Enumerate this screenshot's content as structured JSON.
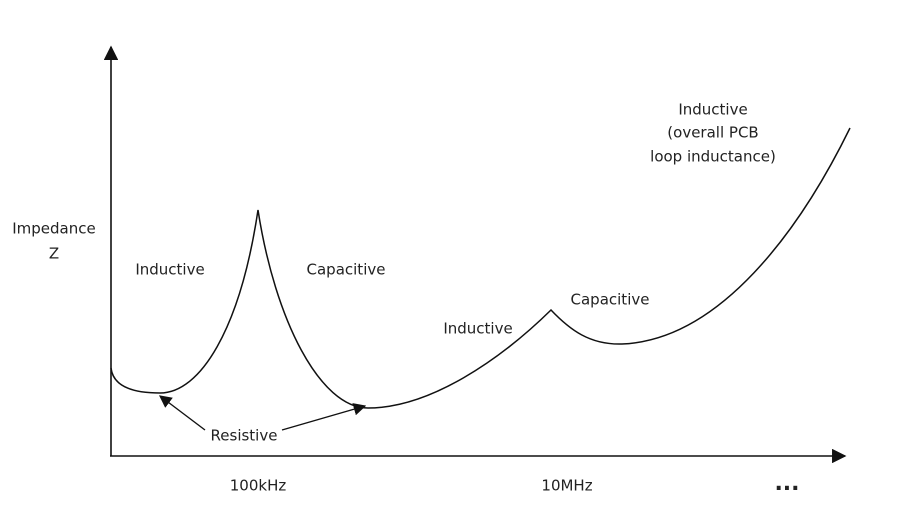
{
  "axis_label": {
    "lines": [
      "Impedance",
      "Z"
    ]
  },
  "regions": [
    {
      "label": "Inductive"
    },
    {
      "label": "Capacitive"
    },
    {
      "label": "Inductive"
    },
    {
      "label": "Capacitive"
    }
  ],
  "pcb_region": {
    "lines": [
      "Inductive",
      "(overall PCB",
      "loop inductance)"
    ]
  },
  "resistive_label": "Resistive",
  "x_labels": [
    "100kHz",
    "10MHz",
    "..."
  ]
}
